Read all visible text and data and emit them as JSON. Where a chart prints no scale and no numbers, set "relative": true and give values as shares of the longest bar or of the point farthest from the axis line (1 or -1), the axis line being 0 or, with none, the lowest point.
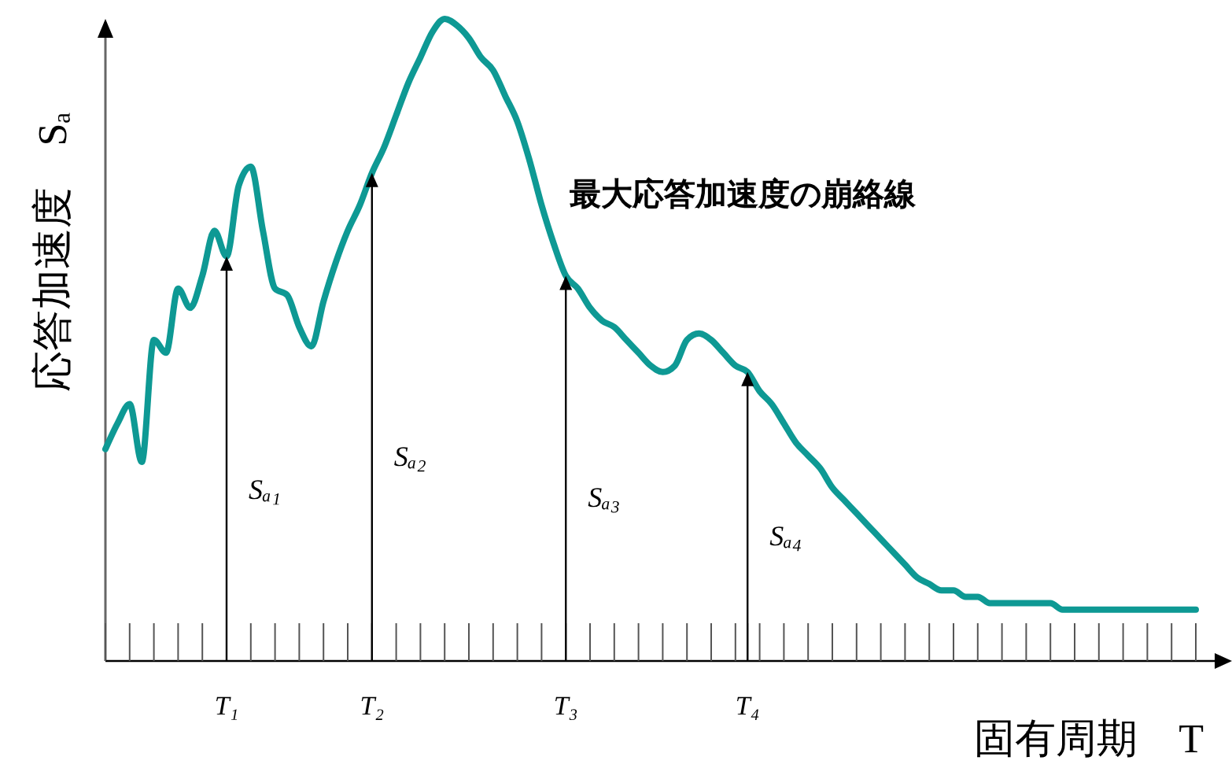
{
  "chart_data": {
    "type": "line",
    "relative": true,
    "categories": [
      null,
      null,
      null,
      null,
      null,
      null,
      null,
      null,
      null,
      null,
      "T₁",
      null,
      null,
      null,
      null,
      null,
      null,
      null,
      null,
      null,
      null,
      null,
      "T₂",
      null,
      null,
      null,
      null,
      null,
      null,
      null,
      null,
      null,
      null,
      null,
      null,
      null,
      null,
      null,
      "T₃",
      null,
      null,
      null,
      null,
      null,
      null,
      null,
      null,
      null,
      null,
      null,
      null,
      null,
      null,
      "T₄",
      null,
      null,
      null,
      null,
      null,
      null,
      null,
      null,
      null,
      null,
      null,
      null,
      null,
      null,
      null,
      null,
      null,
      null,
      null,
      null,
      null,
      null,
      null,
      null,
      null,
      null,
      null,
      null,
      null,
      null,
      null,
      null,
      null,
      null,
      null,
      null,
      null
    ],
    "xlabel": "固有周期　T",
    "ylabel": "応答加速度　Sₐ",
    "series": [
      {
        "name": "最大応答加速度の崩絡線",
        "color": "#0e9994",
        "values": [
          0.33,
          0.37,
          0.4,
          0.31,
          0.5,
          0.48,
          0.58,
          0.55,
          0.6,
          0.67,
          0.63,
          0.74,
          0.77,
          0.67,
          0.58,
          0.57,
          0.52,
          0.49,
          0.56,
          0.62,
          0.67,
          0.71,
          0.76,
          0.8,
          0.85,
          0.9,
          0.94,
          0.98,
          1,
          0.99,
          0.97,
          0.94,
          0.92,
          0.88,
          0.84,
          0.78,
          0.71,
          0.65,
          0.6,
          0.58,
          0.55,
          0.53,
          0.52,
          0.5,
          0.48,
          0.46,
          0.45,
          0.46,
          0.5,
          0.51,
          0.5,
          0.48,
          0.46,
          0.45,
          0.42,
          0.4,
          0.37,
          0.34,
          0.32,
          0.3,
          0.27,
          0.25,
          0.23,
          0.21,
          0.19,
          0.17,
          0.15,
          0.13,
          0.12,
          0.11,
          0.11,
          0.1,
          0.1,
          0.09,
          0.09,
          0.09,
          0.09,
          0.09,
          0.09,
          0.08,
          0.08,
          0.08,
          0.08,
          0.08,
          0.08,
          0.08,
          0.08,
          0.08,
          0.08,
          0.08,
          0.08
        ]
      }
    ],
    "annotations": [
      "Sₐ₁",
      "Sₐ₂",
      "Sₐ₃",
      "Sₐ₄"
    ]
  }
}
